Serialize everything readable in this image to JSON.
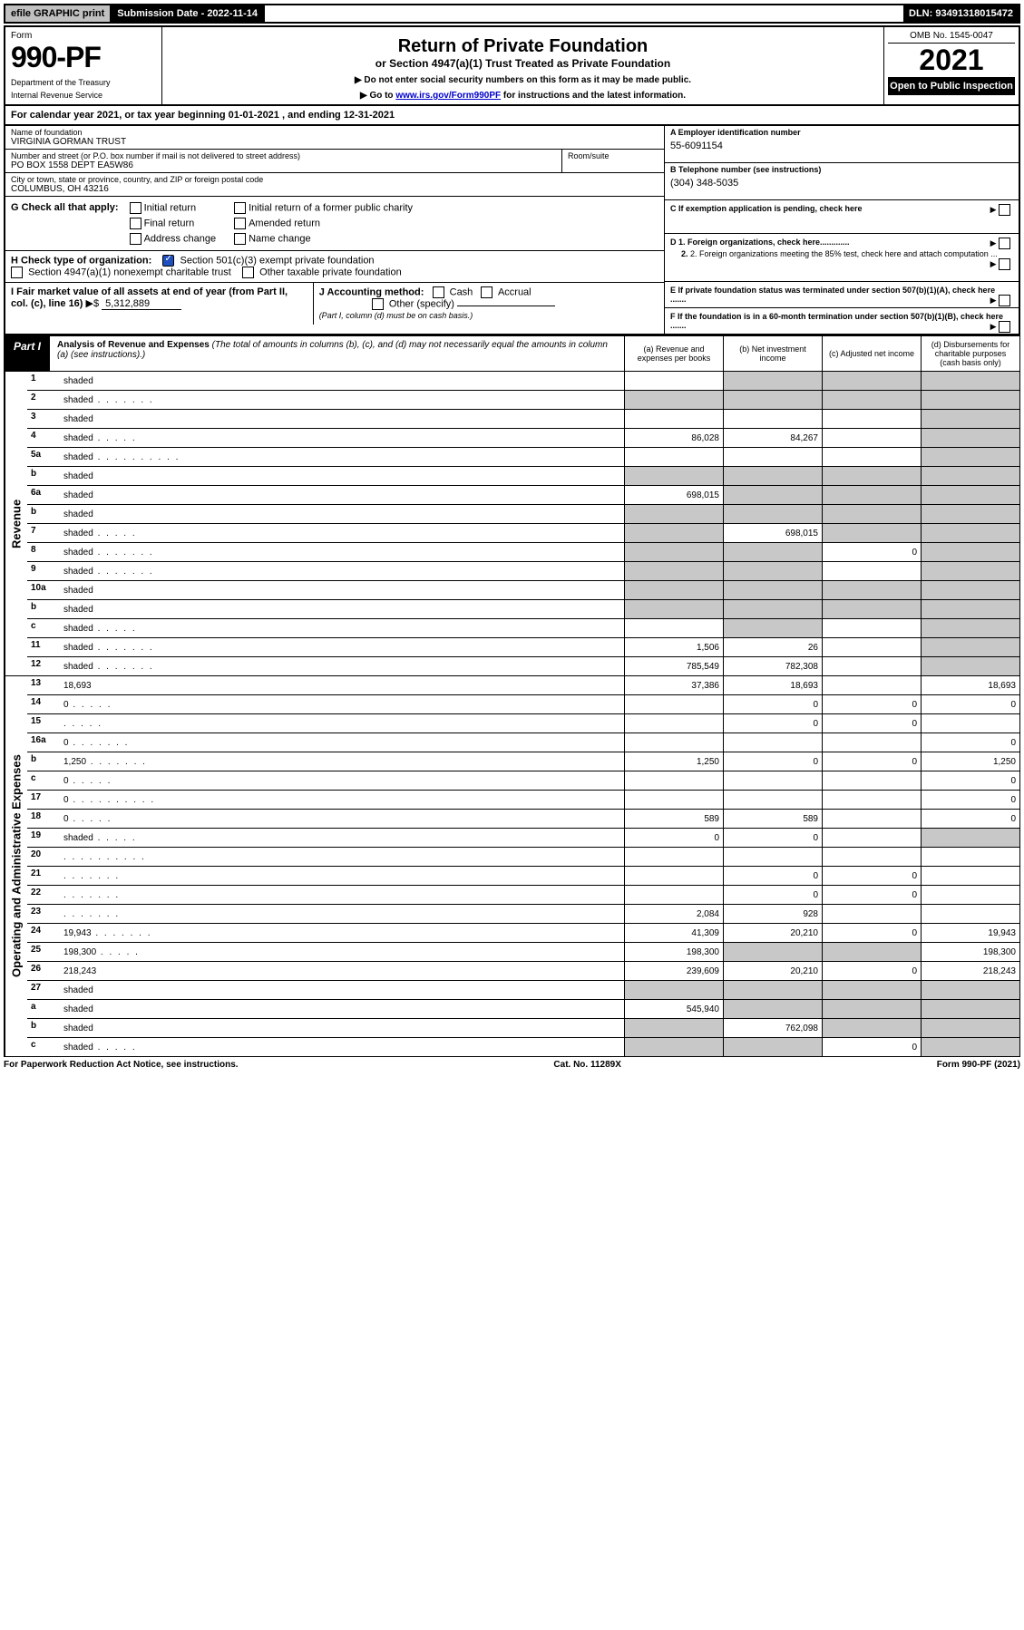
{
  "top_bar": {
    "efile": "efile GRAPHIC print",
    "submission": "Submission Date - 2022-11-14",
    "dln": "DLN: 93491318015472"
  },
  "header": {
    "form_label": "Form",
    "form_number": "990-PF",
    "dept1": "Department of the Treasury",
    "dept2": "Internal Revenue Service",
    "title": "Return of Private Foundation",
    "subtitle": "or Section 4947(a)(1) Trust Treated as Private Foundation",
    "instruct1": "▶ Do not enter social security numbers on this form as it may be made public.",
    "instruct2_pre": "▶ Go to ",
    "instruct2_link": "www.irs.gov/Form990PF",
    "instruct2_post": " for instructions and the latest information.",
    "omb": "OMB No. 1545-0047",
    "year": "2021",
    "open_public": "Open to Public Inspection"
  },
  "cal_year": "For calendar year 2021, or tax year beginning 01-01-2021                        , and ending 12-31-2021",
  "info": {
    "name_label": "Name of foundation",
    "name": "VIRGINIA GORMAN TRUST",
    "addr_label": "Number and street (or P.O. box number if mail is not delivered to street address)",
    "addr": "PO BOX 1558 DEPT EA5W86",
    "room_label": "Room/suite",
    "city_label": "City or town, state or province, country, and ZIP or foreign postal code",
    "city": "COLUMBUS, OH  43216",
    "ein_label": "A Employer identification number",
    "ein": "55-6091154",
    "phone_label": "B Telephone number (see instructions)",
    "phone": "(304) 348-5035",
    "c_label": "C If exemption application is pending, check here",
    "d1": "D 1. Foreign organizations, check here.............",
    "d2": "2. Foreign organizations meeting the 85% test, check here and attach computation ...",
    "e_label": "E  If private foundation status was terminated under section 507(b)(1)(A), check here .......",
    "f_label": "F  If the foundation is in a 60-month termination under section 507(b)(1)(B), check here ......."
  },
  "g": {
    "label": "G Check all that apply:",
    "opts": [
      "Initial return",
      "Initial return of a former public charity",
      "Final return",
      "Amended return",
      "Address change",
      "Name change"
    ]
  },
  "h": {
    "label": "H Check type of organization:",
    "opt1": "Section 501(c)(3) exempt private foundation",
    "opt2": "Section 4947(a)(1) nonexempt charitable trust",
    "opt3": "Other taxable private foundation"
  },
  "i": {
    "label_pre": "I Fair market value of all assets at end of year (from Part II, col. (c), line 16) ",
    "arrow": "▶$",
    "value": "5,312,889"
  },
  "j": {
    "label": "J Accounting method:",
    "cash": "Cash",
    "accrual": "Accrual",
    "other": "Other (specify)",
    "note": "(Part I, column (d) must be on cash basis.)"
  },
  "part1": {
    "label": "Part I",
    "title": "Analysis of Revenue and Expenses",
    "title_note": " (The total of amounts in columns (b), (c), and (d) may not necessarily equal the amounts in column (a) (see instructions).)",
    "col_a": "(a)   Revenue and expenses per books",
    "col_b": "(b)   Net investment income",
    "col_c": "(c)   Adjusted net income",
    "col_d": "(d)   Disbursements for charitable purposes (cash basis only)"
  },
  "side_labels": {
    "revenue": "Revenue",
    "expenses": "Operating and Administrative Expenses"
  },
  "rows": [
    {
      "n": "1",
      "d": "shaded",
      "a": "",
      "b": "shaded",
      "c": "shaded"
    },
    {
      "n": "2",
      "d": "shaded",
      "dots": "med",
      "a": "shaded",
      "b": "shaded",
      "c": "shaded"
    },
    {
      "n": "3",
      "d": "shaded",
      "a": "",
      "b": "",
      "c": ""
    },
    {
      "n": "4",
      "d": "shaded",
      "dots": "short",
      "a": "86,028",
      "b": "84,267",
      "c": ""
    },
    {
      "n": "5a",
      "d": "shaded",
      "dots": "long",
      "a": "",
      "b": "",
      "c": ""
    },
    {
      "n": "b",
      "d": "shaded",
      "a": "shaded",
      "b": "shaded",
      "c": "shaded"
    },
    {
      "n": "6a",
      "d": "shaded",
      "a": "698,015",
      "b": "shaded",
      "c": "shaded"
    },
    {
      "n": "b",
      "d": "shaded",
      "a": "shaded",
      "b": "shaded",
      "c": "shaded"
    },
    {
      "n": "7",
      "d": "shaded",
      "dots": "short",
      "a": "shaded",
      "b": "698,015",
      "c": "shaded"
    },
    {
      "n": "8",
      "d": "shaded",
      "dots": "med",
      "a": "shaded",
      "b": "shaded",
      "c": "0"
    },
    {
      "n": "9",
      "d": "shaded",
      "dots": "med",
      "a": "shaded",
      "b": "shaded",
      "c": ""
    },
    {
      "n": "10a",
      "d": "shaded",
      "a": "shaded",
      "b": "shaded",
      "c": "shaded"
    },
    {
      "n": "b",
      "d": "shaded",
      "a": "shaded",
      "b": "shaded",
      "c": "shaded"
    },
    {
      "n": "c",
      "d": "shaded",
      "dots": "short",
      "a": "",
      "b": "shaded",
      "c": ""
    },
    {
      "n": "11",
      "d": "shaded",
      "dots": "med",
      "a": "1,506",
      "b": "26",
      "c": ""
    },
    {
      "n": "12",
      "d": "shaded",
      "dots": "med",
      "a": "785,549",
      "b": "782,308",
      "c": ""
    }
  ],
  "exp_rows": [
    {
      "n": "13",
      "d": "18,693",
      "a": "37,386",
      "b": "18,693",
      "c": ""
    },
    {
      "n": "14",
      "d": "0",
      "dots": "short",
      "a": "",
      "b": "0",
      "c": "0"
    },
    {
      "n": "15",
      "d": "",
      "dots": "short",
      "a": "",
      "b": "0",
      "c": "0"
    },
    {
      "n": "16a",
      "d": "0",
      "dots": "med",
      "a": "",
      "b": "",
      "c": ""
    },
    {
      "n": "b",
      "d": "1,250",
      "dots": "med",
      "a": "1,250",
      "b": "0",
      "c": "0"
    },
    {
      "n": "c",
      "d": "0",
      "dots": "short",
      "a": "",
      "b": "",
      "c": ""
    },
    {
      "n": "17",
      "d": "0",
      "dots": "long",
      "a": "",
      "b": "",
      "c": ""
    },
    {
      "n": "18",
      "d": "0",
      "dots": "short",
      "a": "589",
      "b": "589",
      "c": ""
    },
    {
      "n": "19",
      "d": "shaded",
      "dots": "short",
      "a": "0",
      "b": "0",
      "c": ""
    },
    {
      "n": "20",
      "d": "",
      "dots": "long",
      "a": "",
      "b": "",
      "c": ""
    },
    {
      "n": "21",
      "d": "",
      "dots": "med",
      "a": "",
      "b": "0",
      "c": "0"
    },
    {
      "n": "22",
      "d": "",
      "dots": "med",
      "a": "",
      "b": "0",
      "c": "0"
    },
    {
      "n": "23",
      "d": "",
      "dots": "med",
      "a": "2,084",
      "b": "928",
      "c": ""
    },
    {
      "n": "24",
      "d": "19,943",
      "dots": "med",
      "a": "41,309",
      "b": "20,210",
      "c": "0"
    },
    {
      "n": "25",
      "d": "198,300",
      "dots": "short",
      "a": "198,300",
      "b": "shaded",
      "c": "shaded"
    },
    {
      "n": "26",
      "d": "218,243",
      "a": "239,609",
      "b": "20,210",
      "c": "0"
    },
    {
      "n": "27",
      "d": "shaded",
      "a": "shaded",
      "b": "shaded",
      "c": "shaded"
    },
    {
      "n": "a",
      "d": "shaded",
      "a": "545,940",
      "b": "shaded",
      "c": "shaded"
    },
    {
      "n": "b",
      "d": "shaded",
      "a": "shaded",
      "b": "762,098",
      "c": "shaded"
    },
    {
      "n": "c",
      "d": "shaded",
      "dots": "short",
      "a": "shaded",
      "b": "shaded",
      "c": "0"
    }
  ],
  "footer": {
    "left": "For Paperwork Reduction Act Notice, see instructions.",
    "center": "Cat. No. 11289X",
    "right": "Form 990-PF (2021)"
  }
}
